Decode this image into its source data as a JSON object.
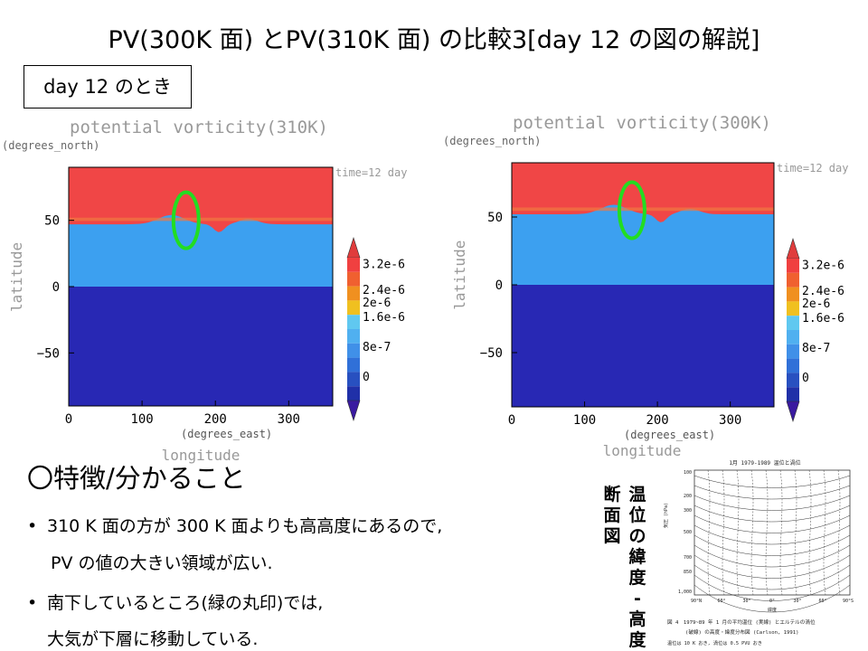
{
  "slide": {
    "title": "PV(300K 面) とPV(310K 面) の比較3[day 12 の図の解説]",
    "day_box": "day 12 のとき"
  },
  "colors": {
    "high_pv": "#f04646",
    "mid_pv": "#3ca0f0",
    "low_pv": "#2828b4",
    "marker": "#22dd22"
  },
  "chart_data": [
    {
      "type": "heatmap",
      "title": "potential vorticity(310K)",
      "ylabel": "latitude",
      "xlabel": "longitude",
      "y_units": "(degrees_north)",
      "x_units": "(degrees_east)",
      "time_label": "time=12 day",
      "xlim": [
        0,
        360
      ],
      "ylim": [
        -90,
        90
      ],
      "x_ticks": [
        "0",
        "100",
        "200",
        "300"
      ],
      "y_ticks": [
        "50",
        "0",
        "-50"
      ],
      "colorbar_labels": [
        "3.2e-6",
        "2.4e-6",
        "2e-6",
        "1.6e-6",
        "8e-7",
        "0"
      ],
      "boundary_lat_approx": 47,
      "marker_center": {
        "lon": 160,
        "lat": 50
      }
    },
    {
      "type": "heatmap",
      "title": "potential vorticity(300K)",
      "ylabel": "latitude",
      "xlabel": "longitude",
      "y_units": "(degrees_north)",
      "x_units": "(degrees_east)",
      "time_label": "time=12 day",
      "xlim": [
        0,
        360
      ],
      "ylim": [
        -90,
        90
      ],
      "x_ticks": [
        "0",
        "100",
        "200",
        "300"
      ],
      "y_ticks": [
        "50",
        "0",
        "-50"
      ],
      "colorbar_labels": [
        "3.2e-6",
        "2.4e-6",
        "2e-6",
        "1.6e-6",
        "8e-7",
        "0"
      ],
      "boundary_lat_approx": 52,
      "marker_center": {
        "lon": 165,
        "lat": 55
      }
    }
  ],
  "features": {
    "heading": "〇特徴/分かること",
    "bullet1": "310 K 面の方が 300 K 面よりも高高度にあるので,",
    "bullet1_cont": "PV の値の大きい領域が広い.",
    "bullet2": "南下しているところ(緑の丸印)では,",
    "bullet2_cont": "大気が下層に移動している."
  },
  "side_labels": {
    "col1": "温位の緯度-高度",
    "col2": "断面図"
  },
  "reference_figure": {
    "header": "1月 1979-1989 温位と渦位",
    "y_axis_label": "気圧 (hPa)",
    "y_ticks": [
      "100",
      "200",
      "300",
      "500",
      "700",
      "850",
      "1,000"
    ],
    "x_ticks": [
      "90°N",
      "60°",
      "30°",
      "0°",
      "30°",
      "60°",
      "90°S"
    ],
    "x_label": "緯度",
    "caption1": "図 4　1979~89 年 1 月の平均温位 (実線) とエルテルの渦位",
    "caption2": "(破線) の高度・緯度分布図 (Carlson, 1991)",
    "caption3": "温位は 10 K おき, 渦位は 0.5 PVU おき"
  }
}
